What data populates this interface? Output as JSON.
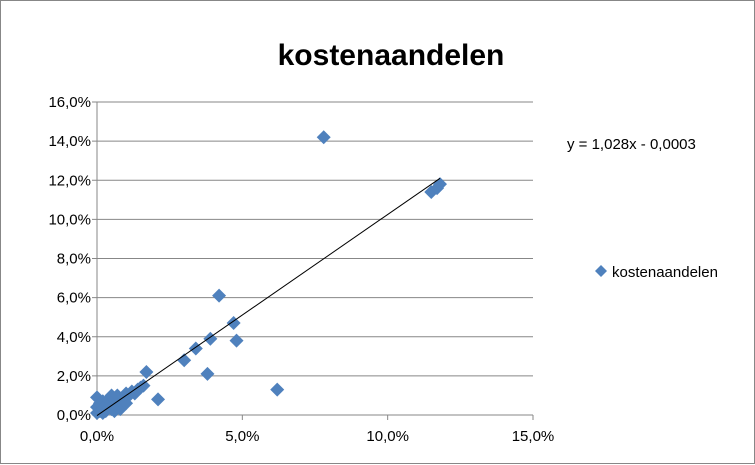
{
  "chart_data": {
    "type": "scatter",
    "title": "kostenaandelen",
    "xlabel": "",
    "ylabel": "",
    "xlim": [
      0,
      0.15
    ],
    "ylim": [
      0,
      0.16
    ],
    "x_ticks": [
      0,
      0.05,
      0.1,
      0.15
    ],
    "x_tick_labels": [
      "0,0%",
      "5,0%",
      "10,0%",
      "15,0%"
    ],
    "y_ticks": [
      0,
      0.02,
      0.04,
      0.06,
      0.08,
      0.1,
      0.12,
      0.14,
      0.16
    ],
    "y_tick_labels": [
      "0,0%",
      "2,0%",
      "4,0%",
      "6,0%",
      "8,0%",
      "10,0%",
      "12,0%",
      "14,0%",
      "16,0%"
    ],
    "grid": "horizontal",
    "legend_position": "right",
    "series": [
      {
        "name": "kostenaandelen",
        "color": "#4f81bd",
        "marker": "diamond",
        "points": [
          [
            0.0,
            0.001
          ],
          [
            0.0,
            0.004
          ],
          [
            0.0,
            0.009
          ],
          [
            0.001,
            0.002
          ],
          [
            0.001,
            0.006
          ],
          [
            0.002,
            0.001
          ],
          [
            0.002,
            0.003
          ],
          [
            0.002,
            0.007
          ],
          [
            0.003,
            0.005
          ],
          [
            0.003,
            0.002
          ],
          [
            0.004,
            0.004
          ],
          [
            0.004,
            0.008
          ],
          [
            0.005,
            0.003
          ],
          [
            0.005,
            0.01
          ],
          [
            0.005,
            0.006
          ],
          [
            0.006,
            0.002
          ],
          [
            0.006,
            0.008
          ],
          [
            0.007,
            0.005
          ],
          [
            0.007,
            0.01
          ],
          [
            0.008,
            0.003
          ],
          [
            0.008,
            0.007
          ],
          [
            0.009,
            0.009
          ],
          [
            0.01,
            0.006
          ],
          [
            0.01,
            0.011
          ],
          [
            0.011,
            0.01
          ],
          [
            0.012,
            0.012
          ],
          [
            0.013,
            0.011
          ],
          [
            0.014,
            0.013
          ],
          [
            0.015,
            0.014
          ],
          [
            0.016,
            0.015
          ],
          [
            0.017,
            0.022
          ],
          [
            0.021,
            0.008
          ],
          [
            0.03,
            0.028
          ],
          [
            0.034,
            0.034
          ],
          [
            0.038,
            0.021
          ],
          [
            0.039,
            0.039
          ],
          [
            0.042,
            0.061
          ],
          [
            0.047,
            0.047
          ],
          [
            0.048,
            0.038
          ],
          [
            0.062,
            0.013
          ],
          [
            0.078,
            0.142
          ],
          [
            0.115,
            0.114
          ],
          [
            0.117,
            0.116
          ],
          [
            0.118,
            0.118
          ]
        ]
      }
    ],
    "trendline": {
      "type": "linear",
      "slope": 1.028,
      "intercept": -0.0003,
      "x_range": [
        0,
        0.118
      ],
      "equation_label": "y = 1,028x - 0,0003"
    }
  }
}
